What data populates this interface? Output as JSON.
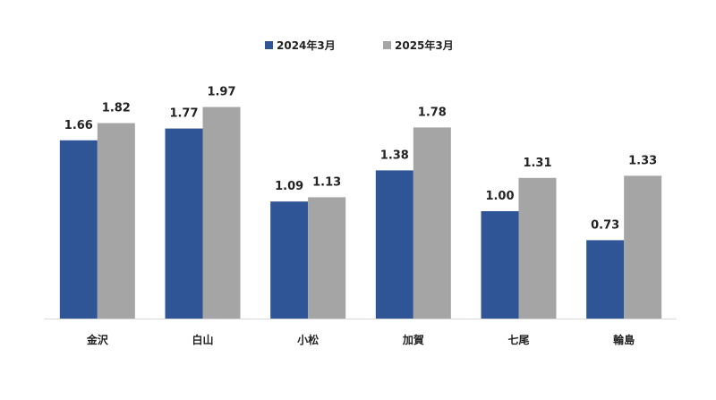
{
  "chart_data": {
    "type": "bar",
    "categories": [
      "金沢",
      "白山",
      "小松",
      "加賀",
      "七尾",
      "輪島"
    ],
    "series": [
      {
        "name": "2024年3月",
        "color": "#2F5597",
        "values": [
          1.66,
          1.77,
          1.09,
          1.38,
          1.0,
          0.73
        ]
      },
      {
        "name": "2025年3月",
        "color": "#A5A5A5",
        "values": [
          1.82,
          1.97,
          1.13,
          1.78,
          1.31,
          1.33
        ]
      }
    ],
    "value_labels": [
      [
        "1.66",
        "1.77",
        "1.09",
        "1.38",
        "1.00",
        "0.73"
      ],
      [
        "1.82",
        "1.97",
        "1.13",
        "1.78",
        "1.31",
        "1.33"
      ]
    ],
    "title": "",
    "xlabel": "",
    "ylabel": "",
    "ylim": [
      0,
      2.0
    ],
    "grid": false,
    "legend_position": "top-center",
    "axis_line_color": "#D9D9D9"
  }
}
